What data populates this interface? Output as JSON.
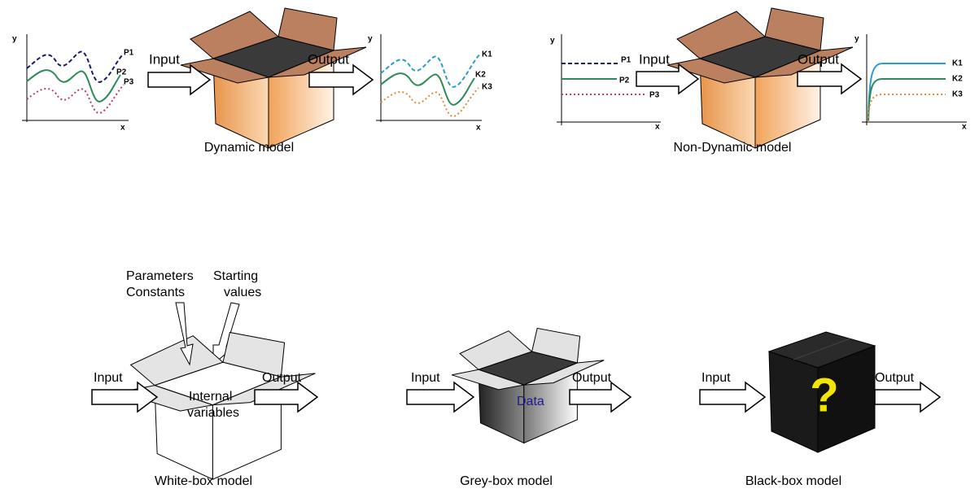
{
  "dynamic": {
    "input_plot": {
      "y_label": "y",
      "x_label": "x",
      "series": [
        "P1",
        "P2",
        "P3"
      ]
    },
    "input": "Input",
    "output": "Output",
    "output_plot": {
      "y_label": "y",
      "x_label": "x",
      "series": [
        "K1",
        "K2",
        "K3"
      ]
    },
    "caption": "Dynamic model"
  },
  "non_dynamic": {
    "input_plot": {
      "y_label": "y",
      "x_label": "x",
      "series": [
        "P1",
        "P2",
        "P3"
      ]
    },
    "input": "Input",
    "output": "Output",
    "output_plot": {
      "y_label": "y",
      "x_label": "x",
      "series": [
        "K1",
        "K2",
        "K3"
      ]
    },
    "caption": "Non-Dynamic model"
  },
  "white_box": {
    "param_label": [
      "Parameters",
      "Constants"
    ],
    "start_label": [
      "Starting",
      "values"
    ],
    "input": "Input",
    "output": "Output",
    "inside": [
      "Internal",
      "variables"
    ],
    "caption": "White-box model"
  },
  "grey_box": {
    "input": "Input",
    "output": "Output",
    "inside": "Data",
    "caption": "Grey-box model"
  },
  "black_box": {
    "input": "Input",
    "output": "Output",
    "inside": "?",
    "caption": "Black-box model"
  }
}
